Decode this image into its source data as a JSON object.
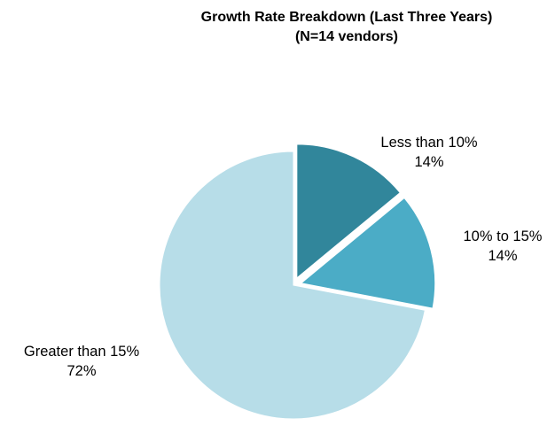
{
  "chart_data": {
    "type": "pie",
    "title": "Growth Rate Breakdown (Last Three Years)",
    "subtitle": "(N=14 vendors)",
    "slices": [
      {
        "label": "Less than 10%",
        "value": 14,
        "value_label": "14%",
        "color": "#31869b",
        "exploded": true
      },
      {
        "label": "10% to 15%",
        "value": 14,
        "value_label": "14%",
        "color": "#4bacc6",
        "exploded": true
      },
      {
        "label": "Greater than 15%",
        "value": 72,
        "value_label": "72%",
        "color": "#b7dde8",
        "exploded": false
      }
    ],
    "start_angle_deg": 0,
    "direction": "clockwise",
    "legend": "none"
  }
}
